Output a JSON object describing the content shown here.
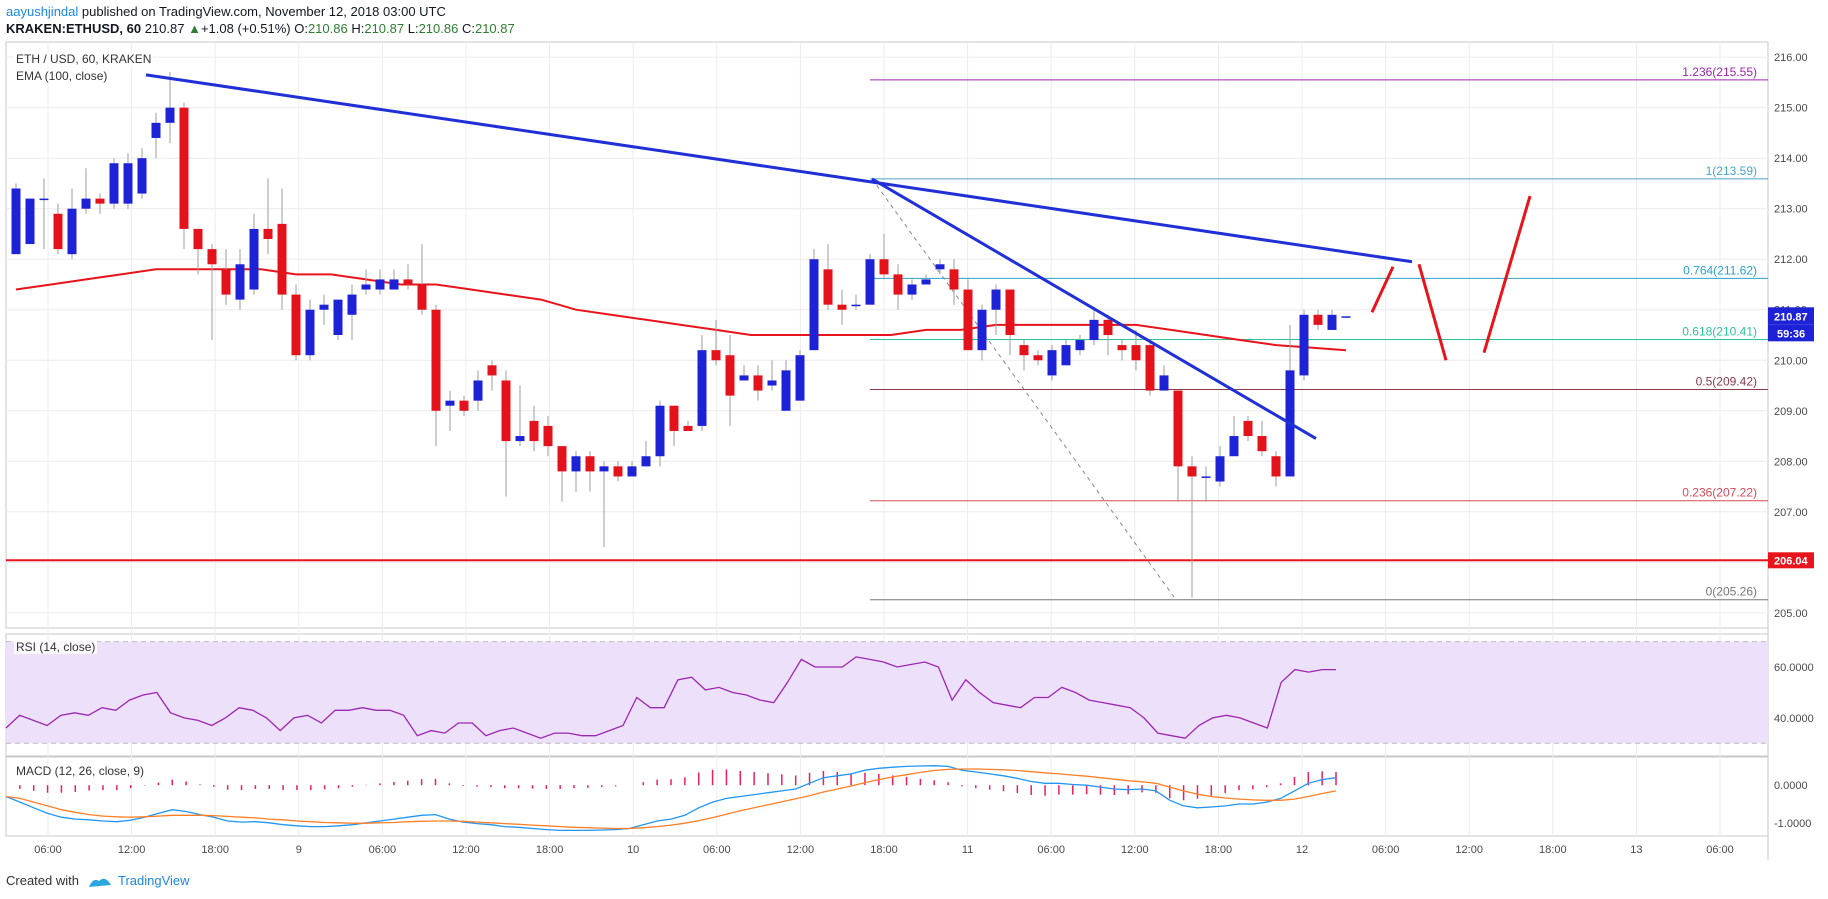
{
  "header": {
    "author": "aayushjindal",
    "published_text": "published on TradingView.com, November 12, 2018 03:00 UTC",
    "symbol": "KRAKEN:ETHUSD, 60",
    "last": "210.87",
    "change_arrow": "▲",
    "change": "+1.08 (+0.51%)",
    "o_label": "O:",
    "o": "210.86",
    "h_label": "H:",
    "h": "210.87",
    "l_label": "L:",
    "l": "210.86",
    "c_label": "C:",
    "c": "210.87"
  },
  "legends": {
    "main_title": "ETH / USD, 60, KRAKEN",
    "ema": "EMA (100, close)",
    "rsi": "RSI (14, close)",
    "macd": "MACD (12, 26, close, 9)"
  },
  "footer": {
    "created_with": "Created with",
    "brand": "TradingView"
  },
  "colors": {
    "up_candle": "#1e22d6",
    "down_candle": "#e3121b",
    "ema": "#e8141b",
    "trendline": "#2130d6",
    "support": "#e8141b",
    "rsi_band": "#ede0fb",
    "macd_line": "#2196f3",
    "signal_line": "#ff7f27",
    "histogram": "#e91e63"
  },
  "chart_data": [
    {
      "type": "candlestick",
      "title": "ETH / USD, 60, KRAKEN",
      "y_ticks": [
        "216.00",
        "215.00",
        "214.00",
        "213.00",
        "212.00",
        "211.00",
        "210.00",
        "209.00",
        "208.00",
        "207.00",
        "206.00",
        "205.00"
      ],
      "ylim": [
        204.7,
        216.3
      ],
      "x_ticks": [
        "06:00",
        "12:00",
        "18:00",
        "9",
        "06:00",
        "12:00",
        "18:00",
        "10",
        "06:00",
        "12:00",
        "18:00",
        "11",
        "06:00",
        "12:00",
        "18:00",
        "12",
        "06:00",
        "12:00",
        "18:00",
        "13",
        "06:00"
      ],
      "candles": [
        [
          212.1,
          213.4,
          212.1,
          213.5
        ],
        [
          212.3,
          213.2,
          212.3,
          213.2
        ],
        [
          213.2,
          213.2,
          212.2,
          213.6
        ],
        [
          212.9,
          212.2,
          212.1,
          213.1
        ],
        [
          212.1,
          213.0,
          212.0,
          213.4
        ],
        [
          213.0,
          213.2,
          212.9,
          213.8
        ],
        [
          213.2,
          213.1,
          212.9,
          213.3
        ],
        [
          213.1,
          213.9,
          213.0,
          214.0
        ],
        [
          213.1,
          213.9,
          213.0,
          214.1
        ],
        [
          213.3,
          214.0,
          213.2,
          214.2
        ],
        [
          214.4,
          214.7,
          214.0,
          214.9
        ],
        [
          214.7,
          215.0,
          214.3,
          215.7
        ],
        [
          215.0,
          212.6,
          212.2,
          215.1
        ],
        [
          212.6,
          212.2,
          211.7,
          212.6
        ],
        [
          212.2,
          211.9,
          210.4,
          212.3
        ],
        [
          211.8,
          211.3,
          211.1,
          212.2
        ],
        [
          211.2,
          211.9,
          211.0,
          212.2
        ],
        [
          211.4,
          212.6,
          211.3,
          212.9
        ],
        [
          212.6,
          212.4,
          212.1,
          213.6
        ],
        [
          212.7,
          211.3,
          211.0,
          213.4
        ],
        [
          211.3,
          210.1,
          210.0,
          211.5
        ],
        [
          210.1,
          211.0,
          210.0,
          211.2
        ],
        [
          211.0,
          211.1,
          210.7,
          211.3
        ],
        [
          210.5,
          211.2,
          210.4,
          211.2
        ],
        [
          210.9,
          211.3,
          210.4,
          211.5
        ],
        [
          211.4,
          211.5,
          211.3,
          211.8
        ],
        [
          211.4,
          211.6,
          211.3,
          211.8
        ],
        [
          211.4,
          211.6,
          211.4,
          211.8
        ],
        [
          211.6,
          211.5,
          211.4,
          211.9
        ],
        [
          211.5,
          211.0,
          210.9,
          212.3
        ],
        [
          211.0,
          209.0,
          208.3,
          211.1
        ],
        [
          209.1,
          209.2,
          208.6,
          209.4
        ],
        [
          209.2,
          209.0,
          208.9,
          209.3
        ],
        [
          209.2,
          209.6,
          209.0,
          209.8
        ],
        [
          209.9,
          209.7,
          209.4,
          210.0
        ],
        [
          209.6,
          208.4,
          207.3,
          209.8
        ],
        [
          208.4,
          208.5,
          208.3,
          209.5
        ],
        [
          208.8,
          208.4,
          208.2,
          209.1
        ],
        [
          208.7,
          208.3,
          208.1,
          208.9
        ],
        [
          208.3,
          207.8,
          207.2,
          208.3
        ],
        [
          207.8,
          208.1,
          207.4,
          208.2
        ],
        [
          208.1,
          207.8,
          207.4,
          208.2
        ],
        [
          207.8,
          207.9,
          206.3,
          208.0
        ],
        [
          207.9,
          207.7,
          207.6,
          208.0
        ],
        [
          207.7,
          207.9,
          207.8,
          208.0
        ],
        [
          207.9,
          208.1,
          207.9,
          208.4
        ],
        [
          208.1,
          209.1,
          207.9,
          209.2
        ],
        [
          209.1,
          208.6,
          208.3,
          209.1
        ],
        [
          208.7,
          208.6,
          208.6,
          208.8
        ],
        [
          208.7,
          210.2,
          208.6,
          210.5
        ],
        [
          210.2,
          210.0,
          209.9,
          210.8
        ],
        [
          210.1,
          209.3,
          208.7,
          210.5
        ],
        [
          209.6,
          209.7,
          209.6,
          209.9
        ],
        [
          209.7,
          209.4,
          209.2,
          209.9
        ],
        [
          209.5,
          209.6,
          209.4,
          210.0
        ],
        [
          209.0,
          209.8,
          209.0,
          210.0
        ],
        [
          209.2,
          210.1,
          209.2,
          210.2
        ],
        [
          210.2,
          212.0,
          210.2,
          212.2
        ],
        [
          211.8,
          211.1,
          211.0,
          212.3
        ],
        [
          211.1,
          211.0,
          210.7,
          211.4
        ],
        [
          211.1,
          211.1,
          211.0,
          211.3
        ],
        [
          211.1,
          212.0,
          211.1,
          212.1
        ],
        [
          212.0,
          211.7,
          211.6,
          212.5
        ],
        [
          211.7,
          211.3,
          211.0,
          211.9
        ],
        [
          211.3,
          211.5,
          211.2,
          211.6
        ],
        [
          211.5,
          211.6,
          211.5,
          211.7
        ],
        [
          211.8,
          211.9,
          211.7,
          212.0
        ],
        [
          211.8,
          211.4,
          211.1,
          212.0
        ],
        [
          211.4,
          210.2,
          210.2,
          211.6
        ],
        [
          210.2,
          211.0,
          210.0,
          211.1
        ],
        [
          211.0,
          211.4,
          210.5,
          211.5
        ],
        [
          211.4,
          210.5,
          210.1,
          211.4
        ],
        [
          210.3,
          210.1,
          209.8,
          210.4
        ],
        [
          210.1,
          210.0,
          209.9,
          210.2
        ],
        [
          209.7,
          210.2,
          209.6,
          210.3
        ],
        [
          209.9,
          210.3,
          209.9,
          210.4
        ],
        [
          210.2,
          210.4,
          210.1,
          210.5
        ],
        [
          210.4,
          210.8,
          210.3,
          211.0
        ],
        [
          210.8,
          210.5,
          210.1,
          210.9
        ],
        [
          210.3,
          210.2,
          210.0,
          210.4
        ],
        [
          210.3,
          210.0,
          209.8,
          210.6
        ],
        [
          210.3,
          209.4,
          209.3,
          210.4
        ],
        [
          209.4,
          209.7,
          209.5,
          209.9
        ],
        [
          209.4,
          207.9,
          207.2,
          209.4
        ],
        [
          207.9,
          207.7,
          205.3,
          208.1
        ],
        [
          207.7,
          207.7,
          207.2,
          207.9
        ],
        [
          207.6,
          208.1,
          207.5,
          208.3
        ],
        [
          208.1,
          208.5,
          208.2,
          208.9
        ],
        [
          208.8,
          208.5,
          208.4,
          208.9
        ],
        [
          208.5,
          208.2,
          208.1,
          208.8
        ],
        [
          208.1,
          207.7,
          207.5,
          208.2
        ],
        [
          207.7,
          209.8,
          207.7,
          210.7
        ],
        [
          209.7,
          210.9,
          209.6,
          211.0
        ],
        [
          210.9,
          210.7,
          210.6,
          211.0
        ],
        [
          210.6,
          210.9,
          210.6,
          211.0
        ],
        [
          210.86,
          210.87,
          210.86,
          210.87
        ]
      ],
      "ema_100": [
        211.4,
        211.5,
        211.6,
        211.7,
        211.8,
        211.8,
        211.8,
        211.8,
        211.7,
        211.7,
        211.6,
        211.5,
        211.5,
        211.4,
        211.3,
        211.2,
        211.0,
        210.9,
        210.8,
        210.7,
        210.6,
        210.5,
        210.5,
        210.5,
        210.5,
        210.5,
        210.6,
        210.6,
        210.7,
        210.7,
        210.7,
        210.7,
        210.7,
        210.6,
        210.5,
        210.4,
        210.3,
        210.25,
        210.2
      ],
      "fibonacci": [
        {
          "level": "1.236",
          "price": "215.55",
          "color": "#9c27b0"
        },
        {
          "level": "1",
          "price": "213.59",
          "color": "#4aa3c9"
        },
        {
          "level": "0.764",
          "price": "211.62",
          "color": "#29a3c9"
        },
        {
          "level": "0.618",
          "price": "210.41",
          "color": "#2ec29a"
        },
        {
          "level": "0.5",
          "price": "209.42",
          "color": "#8b3a4a"
        },
        {
          "level": "0.236",
          "price": "207.22",
          "color": "#d84a5a"
        },
        {
          "level": "0",
          "price": "205.26",
          "color": "#777777"
        }
      ],
      "support_level": "206.04",
      "last_price_tag": "210.87",
      "countdown_tag": "59:36"
    },
    {
      "type": "line",
      "title": "RSI (14, close)",
      "y_ticks": [
        "60.0000",
        "40.0000"
      ],
      "ylim": [
        25,
        73
      ],
      "band": [
        30,
        70
      ],
      "values": [
        36,
        41,
        39,
        37,
        41,
        42,
        41,
        44,
        43,
        47,
        49,
        50,
        42,
        40,
        39,
        37,
        40,
        44,
        43,
        40,
        35,
        40,
        41,
        38,
        43,
        43,
        44,
        43,
        43,
        41,
        33,
        35,
        34,
        38,
        38,
        33,
        35,
        36,
        34,
        32,
        34,
        34,
        33,
        33,
        35,
        37,
        48,
        44,
        44,
        55,
        56,
        51,
        52,
        50,
        49,
        47,
        46,
        54,
        63,
        60,
        60,
        60,
        64,
        63,
        62,
        60,
        61,
        62,
        60,
        47,
        55,
        50,
        46,
        45,
        44,
        48,
        48,
        52,
        50,
        47,
        46,
        45,
        44,
        40,
        34,
        33,
        32,
        37,
        40,
        41,
        40,
        38,
        36,
        54,
        59,
        58,
        59,
        59
      ],
      "series_name": ""
    },
    {
      "type": "line",
      "title": "MACD (12, 26, close, 9)",
      "y_ticks": [
        "0.0000",
        "-1.0000"
      ],
      "ylim": [
        -1.35,
        0.75
      ],
      "macd": [
        -0.3,
        -0.45,
        -0.6,
        -0.75,
        -0.85,
        -0.9,
        -0.92,
        -0.95,
        -0.97,
        -0.93,
        -0.85,
        -0.75,
        -0.65,
        -0.7,
        -0.78,
        -0.85,
        -0.95,
        -0.98,
        -0.97,
        -1.0,
        -1.05,
        -1.08,
        -1.1,
        -1.1,
        -1.08,
        -1.05,
        -1.0,
        -0.95,
        -0.9,
        -0.85,
        -0.8,
        -0.78,
        -0.9,
        -0.98,
        -1.02,
        -1.05,
        -1.1,
        -1.12,
        -1.15,
        -1.18,
        -1.2,
        -1.2,
        -1.2,
        -1.19,
        -1.18,
        -1.15,
        -1.05,
        -0.95,
        -0.9,
        -0.8,
        -0.6,
        -0.45,
        -0.35,
        -0.3,
        -0.25,
        -0.2,
        -0.15,
        -0.1,
        0.05,
        0.2,
        0.25,
        0.3,
        0.4,
        0.45,
        0.48,
        0.5,
        0.51,
        0.52,
        0.5,
        0.4,
        0.35,
        0.3,
        0.25,
        0.18,
        0.1,
        0.05,
        0.05,
        0.02,
        0.0,
        -0.05,
        -0.1,
        -0.12,
        -0.1,
        -0.15,
        -0.4,
        -0.55,
        -0.6,
        -0.58,
        -0.55,
        -0.5,
        -0.5,
        -0.45,
        -0.35,
        -0.15,
        0.05,
        0.15,
        0.2
      ],
      "signal": [
        -0.3,
        -0.35,
        -0.45,
        -0.55,
        -0.65,
        -0.72,
        -0.78,
        -0.82,
        -0.84,
        -0.85,
        -0.84,
        -0.82,
        -0.8,
        -0.8,
        -0.8,
        -0.81,
        -0.83,
        -0.85,
        -0.87,
        -0.9,
        -0.92,
        -0.95,
        -0.97,
        -0.99,
        -1.0,
        -1.01,
        -1.01,
        -1.0,
        -0.99,
        -0.97,
        -0.96,
        -0.95,
        -0.95,
        -0.96,
        -0.98,
        -1.0,
        -1.02,
        -1.04,
        -1.06,
        -1.08,
        -1.1,
        -1.12,
        -1.13,
        -1.14,
        -1.15,
        -1.15,
        -1.13,
        -1.1,
        -1.06,
        -1.01,
        -0.94,
        -0.86,
        -0.77,
        -0.68,
        -0.6,
        -0.52,
        -0.44,
        -0.36,
        -0.28,
        -0.18,
        -0.1,
        -0.02,
        0.07,
        0.15,
        0.22,
        0.28,
        0.34,
        0.39,
        0.42,
        0.43,
        0.43,
        0.42,
        0.41,
        0.39,
        0.36,
        0.33,
        0.3,
        0.27,
        0.24,
        0.2,
        0.16,
        0.12,
        0.09,
        0.05,
        -0.05,
        -0.15,
        -0.24,
        -0.3,
        -0.34,
        -0.37,
        -0.39,
        -0.4,
        -0.4,
        -0.37,
        -0.3,
        -0.22,
        -0.15
      ]
    }
  ]
}
